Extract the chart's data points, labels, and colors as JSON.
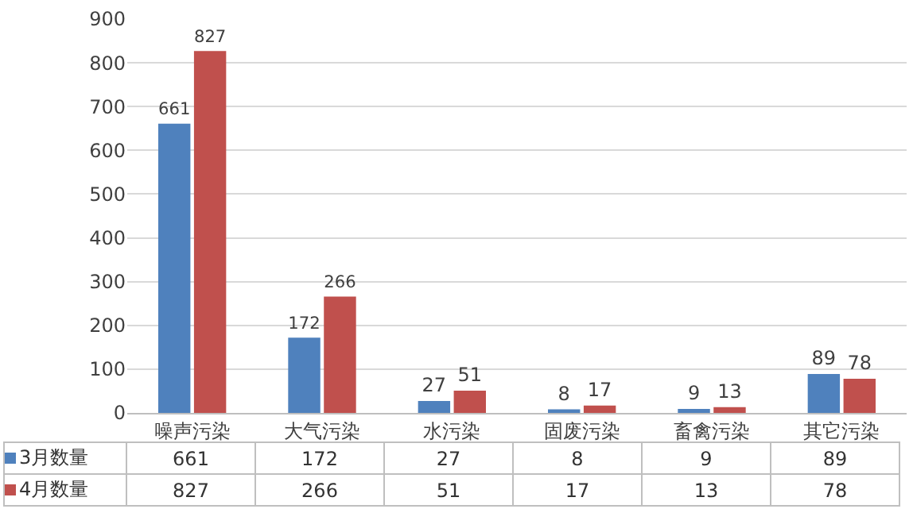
{
  "chart_data": {
    "type": "bar",
    "categories": [
      "噪声污染",
      "大气污染",
      "水污染",
      "固废污染",
      "畜禽污染",
      "其它污染"
    ],
    "series": [
      {
        "name": "3月数量",
        "color": "#4f81bd",
        "values": [
          661,
          172,
          27,
          8,
          9,
          89
        ],
        "value_labels": [
          "661",
          "172",
          "27",
          "8",
          "9",
          "89"
        ]
      },
      {
        "name": "4月数量",
        "color": "#c0504d",
        "values": [
          827,
          266,
          51,
          17,
          13,
          78
        ],
        "value_labels": [
          "827",
          "266",
          "51",
          "17",
          "13",
          "78"
        ]
      }
    ],
    "annotations": [
      "661",
      "172",
      "27",
      "8",
      "9",
      "89",
      "827",
      "266",
      "51",
      "17",
      "13",
      "78"
    ],
    "ylim": [
      0,
      900
    ],
    "yticks": [
      0,
      100,
      200,
      300,
      400,
      500,
      600,
      700,
      800,
      900
    ],
    "grid": "y",
    "legend": "bottom"
  }
}
